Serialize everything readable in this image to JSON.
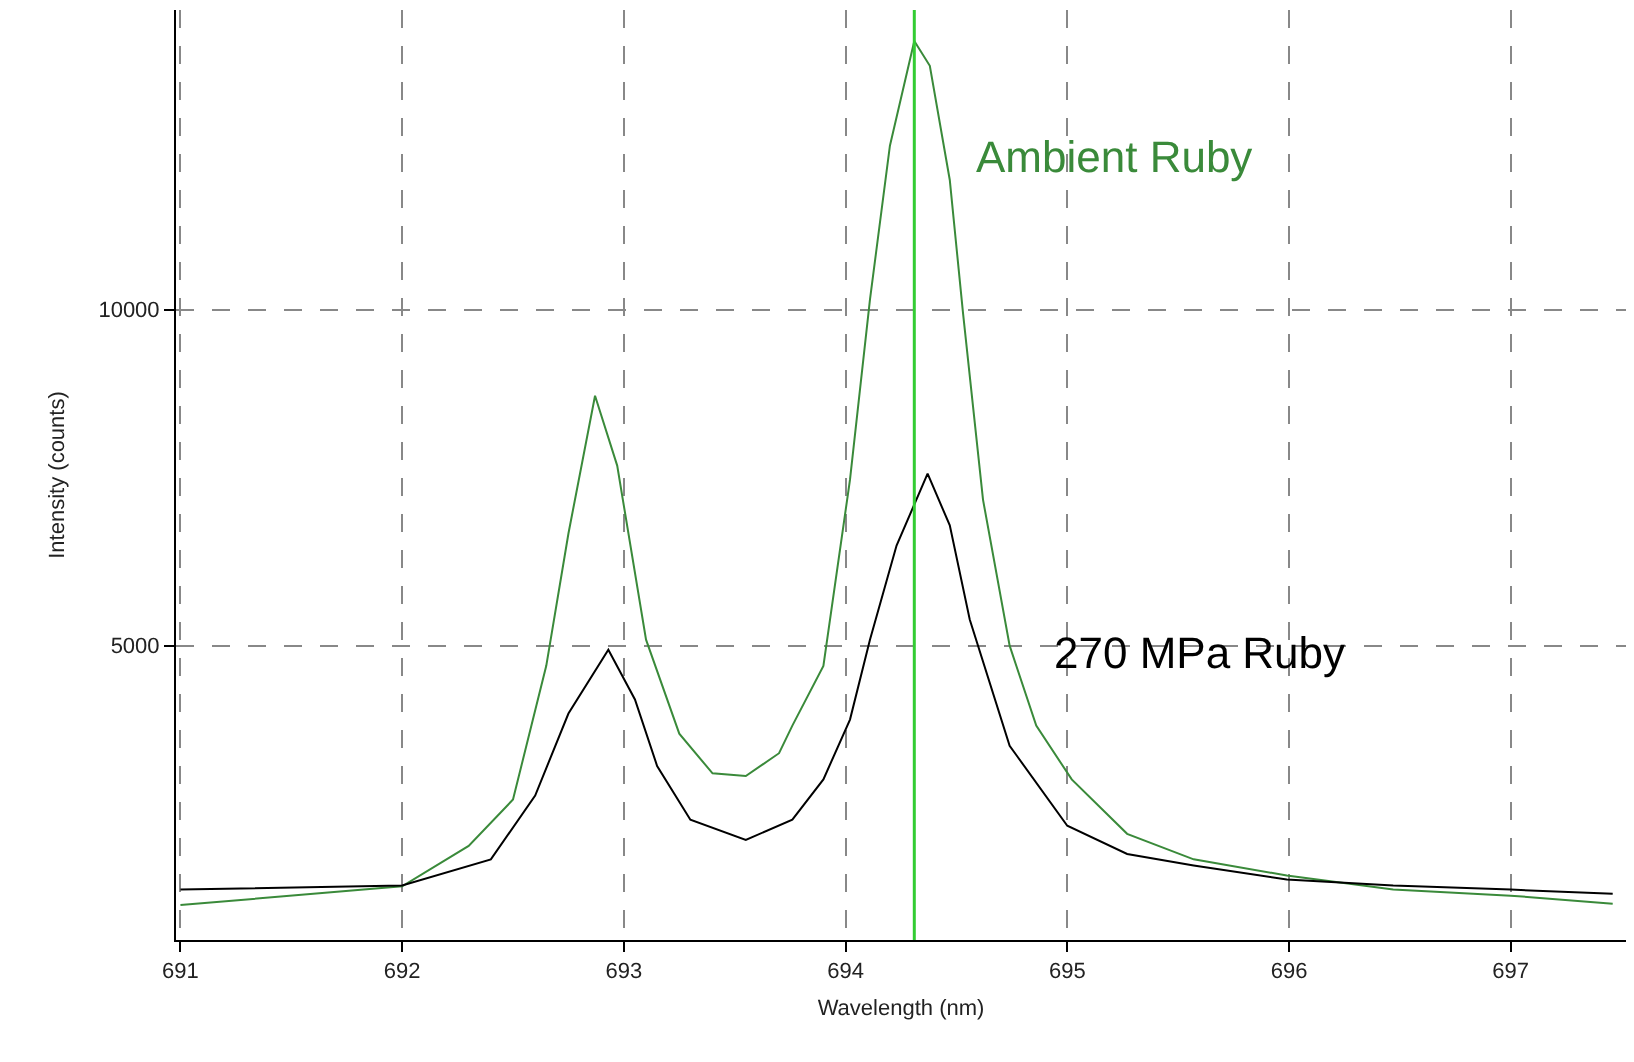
{
  "chart_data": {
    "type": "line",
    "xlabel": "Wavelength (nm)",
    "ylabel": "Intensity (counts)",
    "xlim": [
      690.98,
      697.52
    ],
    "xticks": [
      691,
      692,
      693,
      694,
      695,
      696,
      697
    ],
    "ylim": [
      620,
      14460
    ],
    "yticks": [
      5000,
      10000
    ],
    "grid": true,
    "legend": false,
    "marker": "none",
    "line_style": "solid",
    "series": [
      {
        "name": "Ambient Ruby",
        "color": "#3a8a3a",
        "x": [
          691.0,
          692.0,
          692.3,
          692.5,
          692.65,
          692.75,
          692.87,
          692.97,
          693.1,
          693.25,
          693.4,
          693.55,
          693.7,
          693.76,
          693.9,
          694.02,
          694.11,
          694.2,
          694.31,
          694.38,
          694.47,
          694.53,
          694.62,
          694.74,
          694.86,
          695.02,
          695.27,
          695.57,
          695.99,
          696.47,
          697.0,
          697.46
        ],
        "values": [
          1140,
          1420,
          2020,
          2710,
          4700,
          6670,
          8720,
          7680,
          5090,
          3690,
          3100,
          3060,
          3400,
          3810,
          4700,
          7470,
          10150,
          12440,
          14000,
          13630,
          11930,
          9940,
          7170,
          5000,
          3810,
          3010,
          2200,
          1820,
          1580,
          1370,
          1280,
          1160
        ]
      },
      {
        "name": "270 MPa Ruby",
        "color": "#000000",
        "x": [
          691.0,
          692.0,
          692.4,
          692.6,
          692.75,
          692.93,
          693.05,
          693.15,
          693.3,
          693.55,
          693.76,
          693.9,
          694.02,
          694.11,
          694.23,
          694.37,
          694.47,
          694.56,
          694.74,
          695.0,
          695.27,
          695.57,
          695.99,
          696.47,
          697.0,
          697.46
        ],
        "values": [
          1370,
          1430,
          1820,
          2770,
          3990,
          4940,
          4200,
          3210,
          2410,
          2110,
          2410,
          3010,
          3900,
          5090,
          6490,
          7560,
          6790,
          5390,
          3510,
          2320,
          1900,
          1730,
          1520,
          1430,
          1370,
          1310
        ]
      }
    ],
    "ref_lines": [
      {
        "axis": "x",
        "value": 694.31,
        "color": "#33cc33",
        "line_style": "solid"
      }
    ]
  }
}
